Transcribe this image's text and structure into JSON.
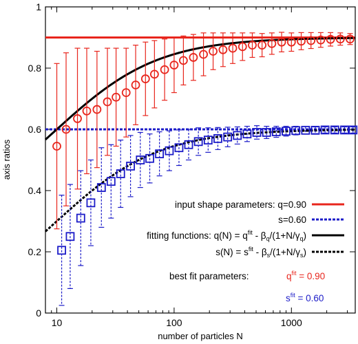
{
  "chart_data": {
    "type": "scatter",
    "xscale": "log",
    "xlim": [
      8,
      3500
    ],
    "ylim": [
      0,
      1
    ],
    "xlabel": "number of particles N",
    "ylabel": "axis ratios",
    "x_ticks": [
      {
        "value": 10,
        "label": "10"
      },
      {
        "value": 100,
        "label": "100"
      },
      {
        "value": 1000,
        "label": "1000"
      }
    ],
    "y_ticks": [
      {
        "value": 0,
        "label": "0"
      },
      {
        "value": 0.2,
        "label": "0.2"
      },
      {
        "value": 0.4,
        "label": "0.4"
      },
      {
        "value": 0.6,
        "label": "0.6"
      },
      {
        "value": 0.8,
        "label": "0.8"
      },
      {
        "value": 1,
        "label": "1"
      }
    ],
    "colors": {
      "q": "#e8251c",
      "s": "#1b1bc8",
      "fit": "#000000",
      "bf_q": "#e8251c",
      "bf_s": "#1b1bc8"
    },
    "input_q": 0.9,
    "input_s": 0.6,
    "series": [
      {
        "marker": "circle",
        "x": [
          10,
          12,
          15,
          18,
          22,
          27,
          32,
          39,
          47,
          57,
          68,
          83,
          100,
          120,
          146,
          178,
          215,
          261,
          316,
          383,
          464,
          562,
          681,
          825,
          1000,
          1212,
          1468,
          1778,
          2154,
          2610,
          3162
        ],
        "y": [
          0.545,
          0.6,
          0.635,
          0.66,
          0.665,
          0.69,
          0.705,
          0.72,
          0.745,
          0.765,
          0.78,
          0.795,
          0.81,
          0.825,
          0.835,
          0.845,
          0.855,
          0.86,
          0.865,
          0.87,
          0.875,
          0.875,
          0.88,
          0.885,
          0.885,
          0.888,
          0.89,
          0.892,
          0.894,
          0.895,
          0.895
        ],
        "err": [
          0.27,
          0.25,
          0.23,
          0.205,
          0.19,
          0.175,
          0.16,
          0.145,
          0.13,
          0.12,
          0.11,
          0.1,
          0.09,
          0.08,
          0.075,
          0.07,
          0.06,
          0.055,
          0.05,
          0.045,
          0.04,
          0.038,
          0.035,
          0.032,
          0.03,
          0.028,
          0.026,
          0.024,
          0.022,
          0.02,
          0.018
        ]
      },
      {
        "marker": "square",
        "x": [
          11,
          13,
          16,
          19.5,
          24,
          29,
          35,
          42.5,
          51.5,
          62,
          75,
          91,
          110,
          133,
          161,
          195,
          236,
          286,
          346,
          419,
          507,
          614,
          743,
          900,
          1090,
          1320,
          1598,
          1935,
          2343,
          2837,
          3350
        ],
        "y": [
          0.205,
          0.25,
          0.31,
          0.36,
          0.41,
          0.43,
          0.455,
          0.48,
          0.5,
          0.505,
          0.52,
          0.53,
          0.54,
          0.55,
          0.56,
          0.565,
          0.57,
          0.575,
          0.58,
          0.585,
          0.59,
          0.59,
          0.592,
          0.594,
          0.596,
          0.597,
          0.597,
          0.598,
          0.598,
          0.598,
          0.598
        ],
        "err": [
          0.18,
          0.17,
          0.155,
          0.14,
          0.13,
          0.12,
          0.11,
          0.1,
          0.09,
          0.08,
          0.072,
          0.065,
          0.058,
          0.05,
          0.045,
          0.04,
          0.036,
          0.032,
          0.028,
          0.025,
          0.022,
          0.02,
          0.018,
          0.016,
          0.014,
          0.012,
          0.011,
          0.01,
          0.01,
          0.01,
          0.01
        ]
      }
    ],
    "fit_curves": [
      {
        "qfit": 0.9,
        "beta": 0.6,
        "gamma": 10
      },
      {
        "qfit": 0.6,
        "beta": 0.6,
        "gamma": 10
      }
    ],
    "legend": {
      "input_q": "input shape parameters: q=0.90",
      "input_s": "s=0.60",
      "fit_q": "fitting functions: q(N) = q",
      "fit_q_sup": "fit",
      "fit_q_mid": " - β",
      "fit_q_sub": "q",
      "fit_q_tail": "/(1+N/γ",
      "fit_q_sub2": "q",
      "fit_q_close": ")",
      "fit_s": "s(N) = s",
      "fit_s_sup": "fit",
      "fit_s_mid": " - β",
      "fit_s_sub": "s",
      "fit_s_tail": "/(1+N/γ",
      "fit_s_sub2": "s",
      "fit_s_close": ")"
    },
    "best_fit": {
      "label": "best fit parameters:",
      "q_base": "q",
      "q_sup": "fit",
      "q_val": " = 0.90",
      "s_base": "s",
      "s_sup": "fit",
      "s_val": " = 0.60"
    }
  }
}
